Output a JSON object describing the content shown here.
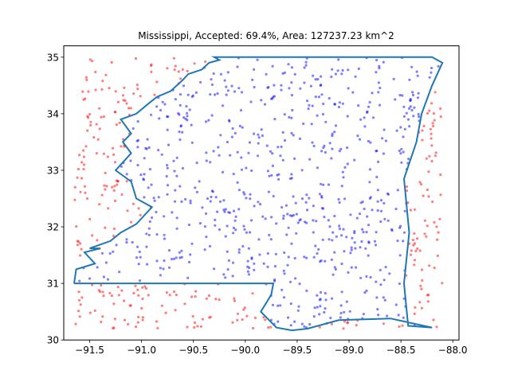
{
  "chart_data": {
    "type": "scatter",
    "title": "Mississippi, Accepted: 69.4%, Area: 127237.23 km^2",
    "xlabel": "",
    "ylabel": "",
    "xlim": [
      -91.75,
      -87.94
    ],
    "ylim": [
      30.0,
      35.2
    ],
    "xticks": [
      -91.5,
      -91.0,
      -90.5,
      -90.0,
      -89.5,
      -89.0,
      -88.5,
      -88.0
    ],
    "xtick_labels": [
      "−91.5",
      "−91.0",
      "−90.5",
      "−90.0",
      "−89.5",
      "−89.0",
      "−88.5",
      "−88.0"
    ],
    "yticks": [
      30,
      31,
      32,
      33,
      34,
      35
    ],
    "ytick_labels": [
      "30",
      "31",
      "32",
      "33",
      "34",
      "35"
    ],
    "grid": false,
    "colors": {
      "accepted": "#0000ff",
      "rejected": "#ff0000",
      "boundary": "#1f77b4"
    },
    "boundary": [
      [
        -91.65,
        31.0
      ],
      [
        -91.63,
        31.25
      ],
      [
        -91.45,
        31.35
      ],
      [
        -91.55,
        31.55
      ],
      [
        -91.4,
        31.62
      ],
      [
        -91.5,
        31.62
      ],
      [
        -91.3,
        31.75
      ],
      [
        -91.2,
        31.9
      ],
      [
        -91.05,
        32.05
      ],
      [
        -90.9,
        32.35
      ],
      [
        -91.05,
        32.5
      ],
      [
        -91.1,
        32.8
      ],
      [
        -91.25,
        33.0
      ],
      [
        -91.1,
        33.3
      ],
      [
        -91.18,
        33.5
      ],
      [
        -91.1,
        33.65
      ],
      [
        -91.2,
        33.9
      ],
      [
        -91.05,
        34.0
      ],
      [
        -90.92,
        34.2
      ],
      [
        -90.85,
        34.3
      ],
      [
        -90.72,
        34.4
      ],
      [
        -90.6,
        34.6
      ],
      [
        -90.55,
        34.7
      ],
      [
        -90.42,
        34.78
      ],
      [
        -90.35,
        34.9
      ],
      [
        -90.25,
        34.95
      ],
      [
        -90.3,
        35.0
      ],
      [
        -88.2,
        35.0
      ],
      [
        -88.1,
        34.9
      ],
      [
        -88.2,
        34.5
      ],
      [
        -88.3,
        34.0
      ],
      [
        -88.35,
        33.5
      ],
      [
        -88.47,
        32.85
      ],
      [
        -88.42,
        31.9
      ],
      [
        -88.47,
        31.0
      ],
      [
        -88.43,
        30.25
      ],
      [
        -88.2,
        30.22
      ],
      [
        -88.6,
        30.38
      ],
      [
        -89.1,
        30.35
      ],
      [
        -89.4,
        30.2
      ],
      [
        -89.55,
        30.17
      ],
      [
        -89.7,
        30.22
      ],
      [
        -89.85,
        30.5
      ],
      [
        -89.75,
        30.8
      ],
      [
        -89.73,
        31.0
      ],
      [
        -91.65,
        31.0
      ]
    ],
    "accepted_count": 694,
    "rejected_count": 306
  }
}
